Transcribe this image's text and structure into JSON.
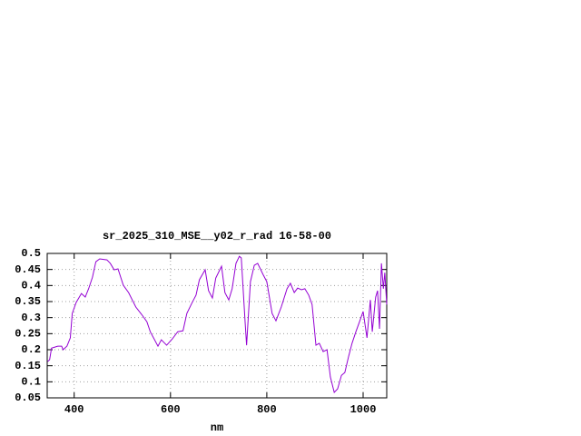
{
  "chart_data": {
    "type": "line",
    "title": "sr_2025_310_MSE__y02_r_rad 16-58-00",
    "x_label": "nm",
    "color": "#9400d3",
    "grid": true,
    "x": [
      345,
      349,
      353,
      366,
      374,
      377,
      385,
      392,
      396,
      404,
      415,
      423,
      430,
      438,
      445,
      453,
      468,
      475,
      483,
      491,
      502,
      513,
      528,
      540,
      551,
      558,
      574,
      581,
      592,
      604,
      615,
      626,
      634,
      645,
      653,
      660,
      672,
      679,
      687,
      694,
      706,
      713,
      721,
      728,
      736,
      743,
      747,
      755,
      758,
      766,
      774,
      781,
      792,
      800,
      811,
      819,
      830,
      842,
      849,
      857,
      864,
      872,
      879,
      887,
      894,
      902,
      909,
      917,
      925,
      932,
      940,
      947,
      955,
      962,
      970,
      977,
      985,
      992,
      1000,
      1008,
      1015,
      1019,
      1026,
      1030,
      1034,
      1038,
      1042,
      1045,
      1049
    ],
    "values": [
      0.163,
      0.169,
      0.205,
      0.211,
      0.211,
      0.2,
      0.211,
      0.237,
      0.313,
      0.347,
      0.375,
      0.364,
      0.39,
      0.426,
      0.474,
      0.483,
      0.48,
      0.469,
      0.449,
      0.452,
      0.401,
      0.378,
      0.333,
      0.31,
      0.287,
      0.256,
      0.211,
      0.231,
      0.214,
      0.234,
      0.256,
      0.259,
      0.313,
      0.347,
      0.37,
      0.418,
      0.449,
      0.384,
      0.361,
      0.423,
      0.46,
      0.378,
      0.355,
      0.39,
      0.469,
      0.491,
      0.486,
      0.285,
      0.214,
      0.412,
      0.463,
      0.469,
      0.435,
      0.412,
      0.313,
      0.29,
      0.333,
      0.39,
      0.407,
      0.378,
      0.392,
      0.387,
      0.39,
      0.37,
      0.341,
      0.214,
      0.22,
      0.194,
      0.2,
      0.115,
      0.067,
      0.078,
      0.12,
      0.129,
      0.18,
      0.22,
      0.256,
      0.285,
      0.319,
      0.237,
      0.355,
      0.256,
      0.364,
      0.384,
      0.265,
      0.469,
      0.39,
      0.44,
      0.341
    ],
    "xlim": [
      344,
      1049
    ],
    "ylim": [
      0.05,
      0.5
    ],
    "xticks": [
      400,
      600,
      800,
      1000
    ],
    "yticks": [
      0.05,
      0.1,
      0.15,
      0.2,
      0.25,
      0.3,
      0.35,
      0.4,
      0.45,
      0.5
    ]
  }
}
